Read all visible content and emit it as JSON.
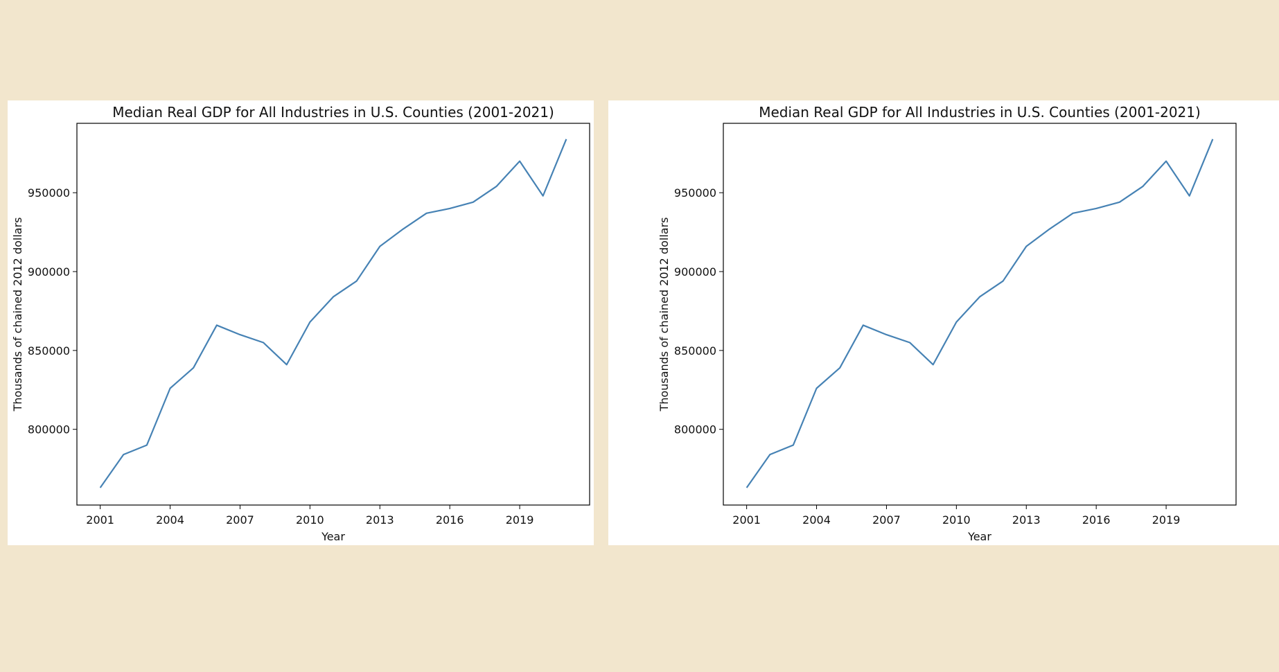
{
  "chart_data": [
    {
      "type": "line",
      "title": "Median Real GDP for All Industries in U.S. Counties (2001-2021)",
      "xlabel": "Year",
      "ylabel": "Thousands of chained 2012 dollars",
      "xlim": [
        2000,
        2022
      ],
      "ylim": [
        752000,
        994000
      ],
      "xticks": [
        "2001",
        "2004",
        "2007",
        "2010",
        "2013",
        "2016",
        "2019"
      ],
      "yticks": [
        "800000",
        "850000",
        "900000",
        "950000"
      ],
      "grid": false,
      "line_color": "#4682b4",
      "x": [
        2001,
        2002,
        2003,
        2004,
        2005,
        2006,
        2007,
        2008,
        2009,
        2010,
        2011,
        2012,
        2013,
        2014,
        2015,
        2016,
        2017,
        2018,
        2019,
        2020,
        2021
      ],
      "series": [
        {
          "values": [
            763000,
            784000,
            790000,
            826000,
            839000,
            866000,
            860000,
            855000,
            841000,
            868000,
            884000,
            894000,
            916000,
            927000,
            937000,
            940000,
            944000,
            954000,
            970000,
            948000,
            984000
          ]
        }
      ]
    },
    {
      "type": "line",
      "title": "Median Real GDP for All Industries in U.S. Counties (2001-2021)",
      "xlabel": "Year",
      "ylabel": "Thousands of chained 2012 dollars",
      "xlim": [
        2000,
        2022
      ],
      "ylim": [
        752000,
        994000
      ],
      "xticks": [
        "2001",
        "2004",
        "2007",
        "2010",
        "2013",
        "2016",
        "2019"
      ],
      "yticks": [
        "800000",
        "850000",
        "900000",
        "950000"
      ],
      "grid": false,
      "line_color": "#4682b4",
      "x": [
        2001,
        2002,
        2003,
        2004,
        2005,
        2006,
        2007,
        2008,
        2009,
        2010,
        2011,
        2012,
        2013,
        2014,
        2015,
        2016,
        2017,
        2018,
        2019,
        2020,
        2021
      ],
      "series": [
        {
          "values": [
            763000,
            784000,
            790000,
            826000,
            839000,
            866000,
            860000,
            855000,
            841000,
            868000,
            884000,
            894000,
            916000,
            927000,
            937000,
            940000,
            944000,
            954000,
            970000,
            948000,
            984000
          ]
        }
      ]
    }
  ]
}
